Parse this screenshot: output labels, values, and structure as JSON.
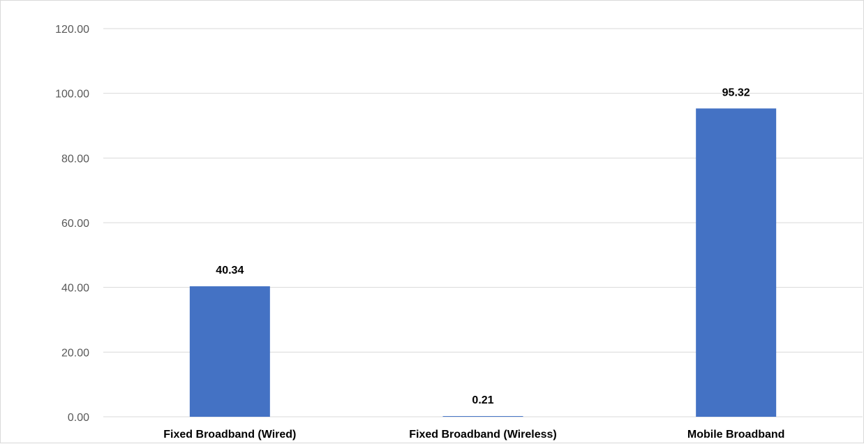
{
  "chart_data": {
    "type": "bar",
    "categories": [
      "Fixed Broadband (Wired)",
      "Fixed Broadband (Wireless)",
      "Mobile Broadband"
    ],
    "values": [
      40.34,
      0.21,
      95.32
    ],
    "data_labels": [
      "40.34",
      "0.21",
      "95.32"
    ],
    "title": "",
    "xlabel": "",
    "ylabel": "",
    "ylim": [
      0,
      120
    ],
    "yticks": [
      "0.00",
      "20.00",
      "40.00",
      "60.00",
      "80.00",
      "100.00",
      "120.00"
    ],
    "grid": true,
    "legend": "none",
    "bar_color": "#4472c4"
  }
}
